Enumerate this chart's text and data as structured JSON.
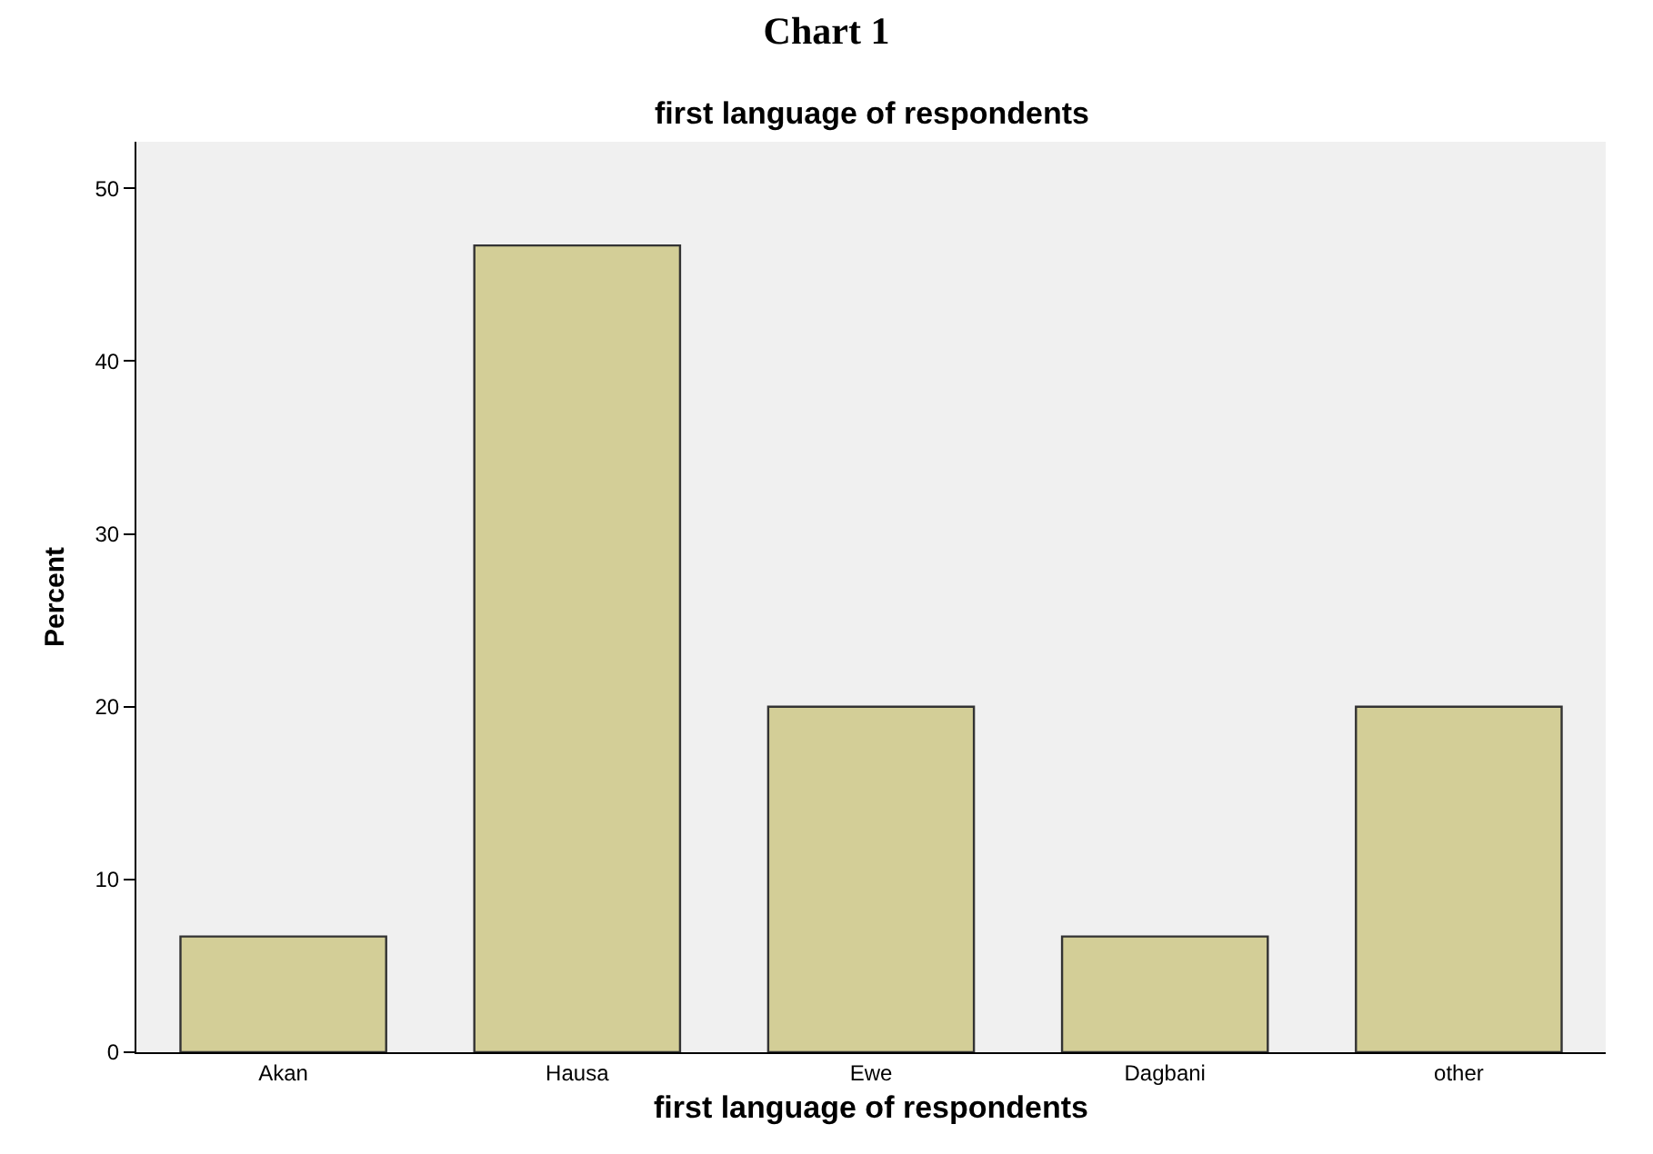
{
  "chart_data": {
    "type": "bar",
    "title": "Chart 1",
    "subtitle": "first language of respondents",
    "xlabel": "first language of respondents",
    "ylabel": "Percent",
    "categories": [
      "Akan",
      "Hausa",
      "Ewe",
      "Dagbani",
      "other"
    ],
    "values": [
      6.7,
      46.7,
      20,
      6.7,
      20
    ],
    "color": "#d3ce97",
    "ylim": [
      0,
      52.7
    ],
    "yticks": [
      0,
      10,
      20,
      30,
      40,
      50
    ],
    "grid": false
  }
}
